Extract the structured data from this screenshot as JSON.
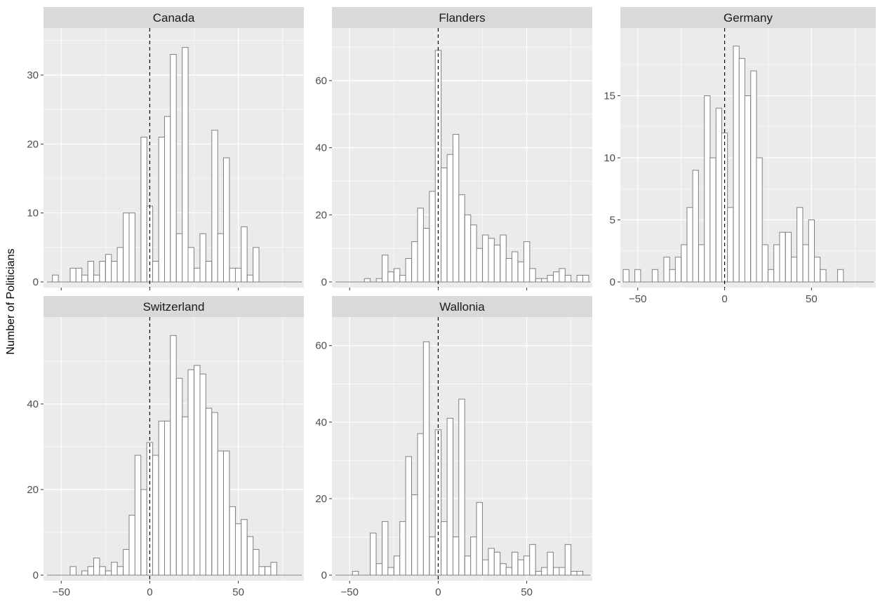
{
  "chart_data": {
    "type": "bar",
    "subtype": "histogram-facets",
    "ylabel": "Number of Politicians",
    "xlabel": "",
    "bin_width": 3.33,
    "x_range": [
      -60,
      87
    ],
    "x_ticks": [
      -50,
      0,
      50
    ],
    "reference_line": {
      "x": 0,
      "style": "dashed"
    },
    "colors": {
      "panel_bg": "#ebebeb",
      "grid": "#ffffff",
      "strip_bg": "#d9d9d9",
      "bar_fill": "#ffffff",
      "bar_stroke": "#7f7f7f",
      "ref_line": "#000000"
    },
    "facets": [
      {
        "name": "Canada",
        "ylim": [
          0,
          36
        ],
        "y_ticks": [
          0,
          10,
          20,
          30
        ],
        "bin_centers": [
          -53.3,
          -50.0,
          -46.7,
          -43.3,
          -40.0,
          -36.7,
          -33.3,
          -30.0,
          -26.7,
          -23.3,
          -20.0,
          -16.7,
          -13.3,
          -10.0,
          -6.7,
          -3.3,
          0.0,
          3.3,
          6.7,
          10.0,
          13.3,
          16.7,
          20.0,
          23.3,
          26.7,
          30.0,
          33.3,
          36.7,
          40.0,
          43.3,
          46.7,
          50.0,
          53.3,
          56.7,
          60.0
        ],
        "counts": [
          1,
          0,
          0,
          2,
          2,
          1,
          3,
          1,
          3,
          4,
          3,
          5,
          10,
          10,
          0,
          21,
          11,
          3,
          21,
          24,
          33,
          7,
          34,
          5,
          2,
          7,
          3,
          22,
          7,
          18,
          2,
          2,
          8,
          1,
          5
        ]
      },
      {
        "name": "Flanders",
        "ylim": [
          0,
          74
        ],
        "y_ticks": [
          0,
          20,
          40,
          60
        ],
        "bin_centers": [
          -40.0,
          -36.7,
          -33.3,
          -30.0,
          -26.7,
          -23.3,
          -20.0,
          -16.7,
          -13.3,
          -10.0,
          -6.7,
          -3.3,
          0.0,
          3.3,
          6.7,
          10.0,
          13.3,
          16.7,
          20.0,
          23.3,
          26.7,
          30.0,
          33.3,
          36.7,
          40.0,
          43.3,
          46.7,
          50.0,
          53.3,
          56.7,
          60.0,
          63.3,
          66.7,
          70.0,
          73.3,
          76.7,
          80.0,
          83.3
        ],
        "counts": [
          1,
          0,
          1,
          8,
          3,
          4,
          2,
          7,
          12,
          22,
          16,
          27,
          69,
          34,
          38,
          44,
          26,
          20,
          17,
          10,
          14,
          13,
          11,
          14,
          7,
          9,
          6,
          12,
          4,
          1,
          1,
          2,
          3,
          4,
          2,
          0,
          2,
          2
        ]
      },
      {
        "name": "Germany",
        "ylim": [
          0,
          20
        ],
        "y_ticks": [
          0,
          5,
          10,
          15
        ],
        "bin_centers": [
          -56.7,
          -53.3,
          -50.0,
          -46.7,
          -43.3,
          -40.0,
          -36.7,
          -33.3,
          -30.0,
          -26.7,
          -23.3,
          -20.0,
          -16.7,
          -13.3,
          -10.0,
          -6.7,
          -3.3,
          0.0,
          3.3,
          6.7,
          10.0,
          13.3,
          16.7,
          20.0,
          23.3,
          26.7,
          30.0,
          33.3,
          36.7,
          40.0,
          43.3,
          46.7,
          50.0,
          53.3,
          56.7,
          60.0,
          63.3,
          66.7
        ],
        "counts": [
          1,
          0,
          1,
          0,
          0,
          1,
          0,
          2,
          1,
          2,
          3,
          6,
          9,
          3,
          15,
          10,
          14,
          12,
          6,
          19,
          18,
          15,
          17,
          10,
          3,
          1,
          3,
          4,
          4,
          2,
          6,
          3,
          5,
          2,
          1,
          0,
          0,
          1
        ]
      },
      {
        "name": "Switzerland",
        "ylim": [
          0,
          59
        ],
        "y_ticks": [
          0,
          20,
          40
        ],
        "bin_centers": [
          -43.3,
          -40.0,
          -36.7,
          -33.3,
          -30.0,
          -26.7,
          -23.3,
          -20.0,
          -16.7,
          -13.3,
          -10.0,
          -6.7,
          -3.3,
          0.0,
          3.3,
          6.7,
          10.0,
          13.3,
          16.7,
          20.0,
          23.3,
          26.7,
          30.0,
          33.3,
          36.7,
          40.0,
          43.3,
          46.7,
          50.0,
          53.3,
          56.7,
          60.0,
          63.3,
          66.7,
          70.0
        ],
        "counts": [
          2,
          0,
          1,
          2,
          4,
          2,
          1,
          3,
          2,
          6,
          14,
          28,
          20,
          31,
          28,
          36,
          36,
          56,
          46,
          37,
          48,
          49,
          47,
          39,
          38,
          29,
          29,
          16,
          12,
          13,
          9,
          6,
          2,
          2,
          3
        ]
      },
      {
        "name": "Wallonia",
        "ylim": [
          0,
          66
        ],
        "y_ticks": [
          0,
          20,
          40,
          60
        ],
        "bin_centers": [
          -46.7,
          -43.3,
          -40.0,
          -36.7,
          -33.3,
          -30.0,
          -26.7,
          -23.3,
          -20.0,
          -16.7,
          -13.3,
          -10.0,
          -6.7,
          -3.3,
          0.0,
          3.3,
          6.7,
          10.0,
          13.3,
          16.7,
          20.0,
          23.3,
          26.7,
          30.0,
          33.3,
          36.7,
          40.0,
          43.3,
          46.7,
          50.0,
          53.3,
          56.7,
          60.0,
          63.3,
          66.7,
          70.0,
          73.3,
          76.7,
          80.0
        ],
        "counts": [
          1,
          0,
          0,
          11,
          3,
          14,
          2,
          5,
          14,
          31,
          21,
          37,
          61,
          10,
          38,
          14,
          41,
          10,
          46,
          5,
          10,
          19,
          4,
          7,
          6,
          3,
          2,
          6,
          4,
          5,
          8,
          1,
          2,
          6,
          2,
          2,
          8,
          1,
          1
        ]
      }
    ]
  }
}
